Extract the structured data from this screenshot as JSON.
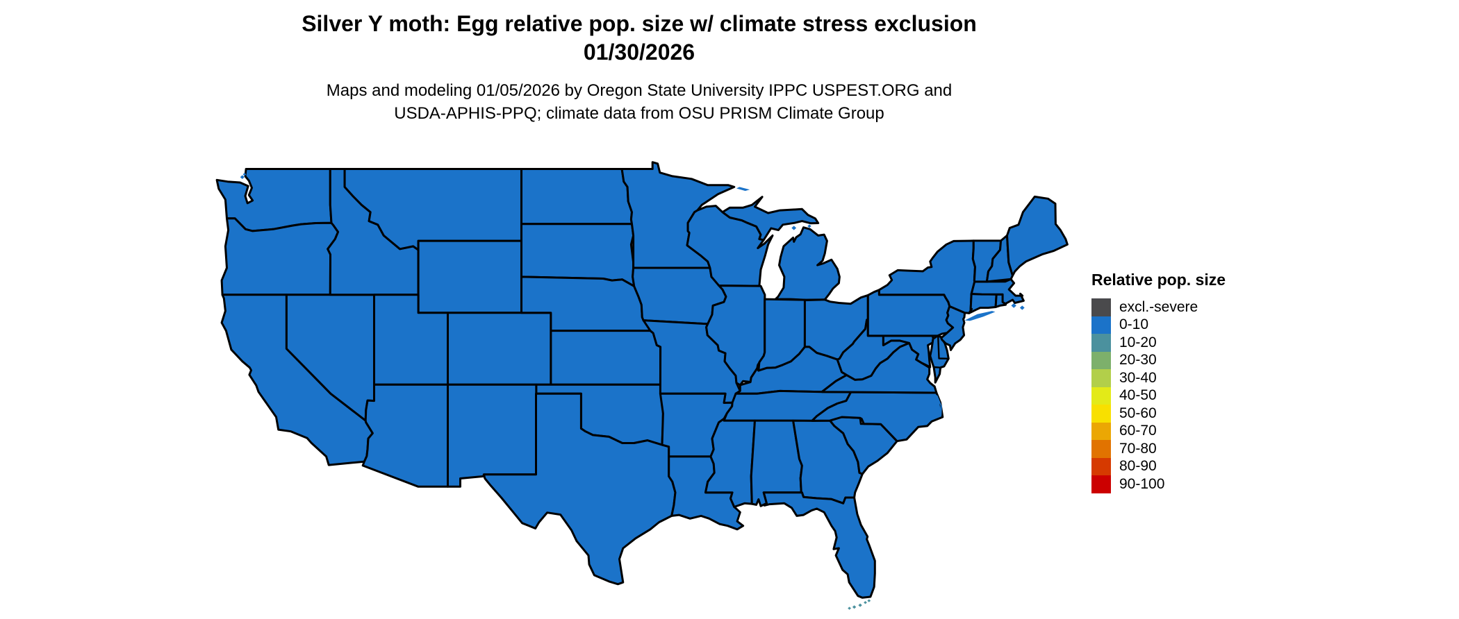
{
  "header": {
    "title": "Silver Y moth: Egg relative pop. size w/ climate stress exclusion",
    "date": "01/30/2026",
    "subtitle_line1": "Maps and modeling 01/05/2026 by Oregon State University IPPC USPEST.ORG and",
    "subtitle_line2": "USDA-APHIS-PPQ; climate data from OSU PRISM Climate Group"
  },
  "legend": {
    "title": "Relative pop. size",
    "items": [
      {
        "label": "excl.-severe",
        "color": "#4a4a4c"
      },
      {
        "label": "0-10",
        "color": "#1b73c9"
      },
      {
        "label": "10-20",
        "color": "#4b919e"
      },
      {
        "label": "20-30",
        "color": "#7db06b"
      },
      {
        "label": "30-40",
        "color": "#b2cf4a"
      },
      {
        "label": "40-50",
        "color": "#e3ea18"
      },
      {
        "label": "50-60",
        "color": "#f8e000"
      },
      {
        "label": "60-70",
        "color": "#eba704"
      },
      {
        "label": "70-80",
        "color": "#e17300"
      },
      {
        "label": "80-90",
        "color": "#d63a00"
      },
      {
        "label": "90-100",
        "color": "#cc0000"
      }
    ]
  },
  "map": {
    "border_color": "#000000",
    "water_color": "#ffffff",
    "regions": [
      {
        "id": "WA",
        "value": "0-10"
      },
      {
        "id": "OR",
        "value": "0-10"
      },
      {
        "id": "CA",
        "value": "0-10"
      },
      {
        "id": "NV",
        "value": "0-10"
      },
      {
        "id": "ID",
        "value": "0-10"
      },
      {
        "id": "MT",
        "value": "0-10"
      },
      {
        "id": "WY",
        "value": "0-10"
      },
      {
        "id": "UT",
        "value": "0-10"
      },
      {
        "id": "CO",
        "value": "0-10"
      },
      {
        "id": "AZ",
        "value": "0-10"
      },
      {
        "id": "NM",
        "value": "0-10"
      },
      {
        "id": "ND",
        "value": "0-10"
      },
      {
        "id": "SD",
        "value": "0-10"
      },
      {
        "id": "NE",
        "value": "0-10"
      },
      {
        "id": "KS",
        "value": "0-10"
      },
      {
        "id": "OK",
        "value": "0-10"
      },
      {
        "id": "TX",
        "value": "0-10"
      },
      {
        "id": "MN",
        "value": "0-10"
      },
      {
        "id": "IA",
        "value": "0-10"
      },
      {
        "id": "MO",
        "value": "0-10"
      },
      {
        "id": "AR",
        "value": "0-10"
      },
      {
        "id": "LA",
        "value": "0-10"
      },
      {
        "id": "WI",
        "value": "0-10"
      },
      {
        "id": "MIU",
        "value": "0-10"
      },
      {
        "id": "MIL",
        "value": "0-10"
      },
      {
        "id": "IL",
        "value": "0-10"
      },
      {
        "id": "IN",
        "value": "0-10"
      },
      {
        "id": "OH",
        "value": "0-10"
      },
      {
        "id": "KY",
        "value": "0-10"
      },
      {
        "id": "TN",
        "value": "0-10"
      },
      {
        "id": "MS",
        "value": "0-10"
      },
      {
        "id": "AL",
        "value": "0-10"
      },
      {
        "id": "GA",
        "value": "0-10"
      },
      {
        "id": "FL",
        "value": "0-10"
      },
      {
        "id": "SC",
        "value": "0-10"
      },
      {
        "id": "NC",
        "value": "0-10"
      },
      {
        "id": "VA",
        "value": "0-10"
      },
      {
        "id": "WV",
        "value": "0-10"
      },
      {
        "id": "MD",
        "value": "0-10"
      },
      {
        "id": "DMV",
        "value": "0-10"
      },
      {
        "id": "PA",
        "value": "0-10"
      },
      {
        "id": "NJ",
        "value": "0-10"
      },
      {
        "id": "NY",
        "value": "0-10"
      },
      {
        "id": "CT",
        "value": "0-10"
      },
      {
        "id": "RI",
        "value": "0-10"
      },
      {
        "id": "MA",
        "value": "0-10"
      },
      {
        "id": "VT",
        "value": "0-10"
      },
      {
        "id": "NH",
        "value": "0-10"
      },
      {
        "id": "ME",
        "value": "0-10"
      }
    ],
    "islands": [
      {
        "id": "long-island",
        "value": "0-10"
      },
      {
        "id": "outer-banks",
        "value": "0-10"
      },
      {
        "id": "isle-royale",
        "value": "0-10"
      },
      {
        "id": "coastal-islets",
        "value": "0-10"
      },
      {
        "id": "florida-keys",
        "value": "10-20"
      }
    ]
  }
}
